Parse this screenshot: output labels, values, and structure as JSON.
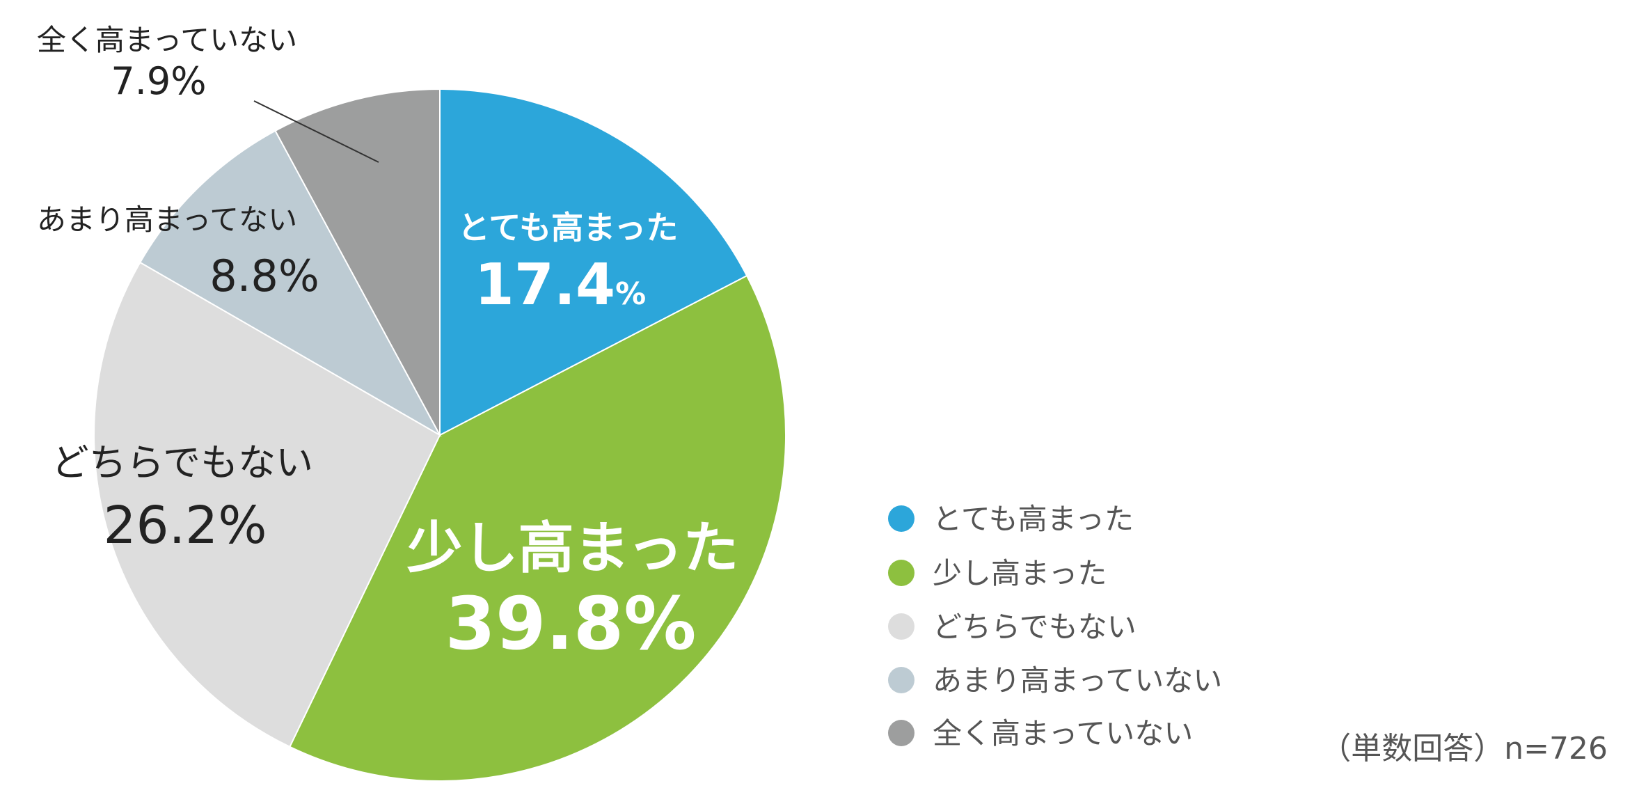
{
  "chart_data": {
    "type": "pie",
    "start_angle_deg": 0,
    "direction": "clockwise",
    "slices": [
      {
        "label": "とても高まった",
        "value": 17.4,
        "value_text": "17.4",
        "unit": "%",
        "color": "#2CA6DA"
      },
      {
        "label": "少し高まった",
        "value": 39.8,
        "value_text": "39.8%",
        "unit": "",
        "color": "#8DC03F"
      },
      {
        "label": "どちらでもない",
        "value": 26.2,
        "value_text": "26.2%",
        "unit": "",
        "color": "#DDDDDD"
      },
      {
        "label": "あまり高まってない",
        "value": 8.8,
        "value_text": "8.8%",
        "unit": "",
        "color": "#BDCBD3"
      },
      {
        "label": "全く高まっていない",
        "value": 7.9,
        "value_text": "7.9%",
        "unit": "",
        "color": "#9D9E9E"
      }
    ],
    "legend": {
      "position": "right",
      "entries": [
        "とても高まった",
        "少し高まった",
        "どちらでもない",
        "あまり高まっていない",
        "全く高まっていない"
      ]
    },
    "note": "（単数回答）n=726"
  }
}
